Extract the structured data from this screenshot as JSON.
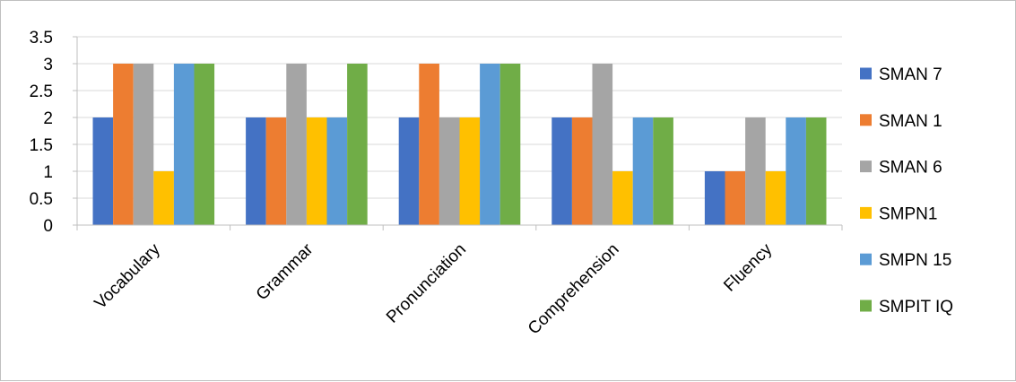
{
  "chart_data": {
    "type": "bar",
    "title": "",
    "xlabel": "",
    "ylabel": "",
    "categories": [
      "Vocabulary",
      "Grammar",
      "Pronunciation",
      "Comprehension",
      "Fluency"
    ],
    "series": [
      {
        "name": "SMAN 7",
        "color": "#4472C4",
        "values": [
          2,
          2,
          2,
          2,
          1
        ]
      },
      {
        "name": "SMAN 1",
        "color": "#ED7D31",
        "values": [
          3,
          2,
          3,
          2,
          1
        ]
      },
      {
        "name": "SMAN 6",
        "color": "#A5A5A5",
        "values": [
          3,
          3,
          2,
          3,
          2
        ]
      },
      {
        "name": "SMPN1",
        "color": "#FFC000",
        "values": [
          1,
          2,
          2,
          1,
          1
        ]
      },
      {
        "name": "SMPN 15",
        "color": "#5B9BD5",
        "values": [
          3,
          2,
          3,
          2,
          2
        ]
      },
      {
        "name": "SMPIT IQ",
        "color": "#70AD47",
        "values": [
          3,
          3,
          3,
          2,
          2
        ]
      }
    ],
    "ylim": [
      0,
      3.5
    ],
    "yticks": [
      0,
      0.5,
      1,
      1.5,
      2,
      2.5,
      3,
      3.5
    ],
    "ytick_labels": [
      "0",
      "0.5",
      "1",
      "1.5",
      "2",
      "2.5",
      "3",
      "3.5"
    ],
    "grid": true,
    "legend_position": "right"
  }
}
